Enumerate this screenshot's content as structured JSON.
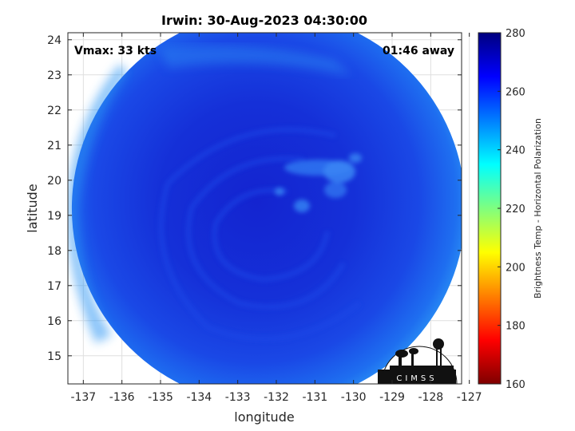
{
  "chart_data": {
    "type": "heatmap",
    "title": "Irwin: 30-Aug-2023 04:30:00",
    "xlabel": "longitude",
    "ylabel": "latitude",
    "x_ticks": [
      -137,
      -136,
      -135,
      -134,
      -133,
      -132,
      -131,
      -130,
      -129,
      -128,
      -127
    ],
    "y_ticks": [
      15,
      16,
      17,
      18,
      19,
      20,
      21,
      22,
      23,
      24
    ],
    "xlim": [
      -137.4,
      -127.2
    ],
    "ylim": [
      14.2,
      24.2
    ],
    "grid": true,
    "annotations": {
      "vmax": "Vmax: 33 kts",
      "away": "01:46 away"
    },
    "colorbar": {
      "label": "Brightness Temp - Horizontal Polarization",
      "range": [
        160,
        280
      ],
      "ticks": [
        160,
        180,
        200,
        220,
        240,
        260,
        280
      ]
    },
    "swath_center": [
      -132.2,
      19.2
    ],
    "swath_radius_deg": 5.6
  },
  "logo": {
    "text": "CIMSS"
  },
  "colors": {
    "swath_outer": "#1e7ef0",
    "swath_core": "#1428d4",
    "warm_bands": "#1a3ee0",
    "colormap_stops": [
      "#7f0000",
      "#ff0000",
      "#ff7f00",
      "#ffff00",
      "#7fff7f",
      "#00ffff",
      "#007fff",
      "#0000ff",
      "#00007f"
    ]
  }
}
